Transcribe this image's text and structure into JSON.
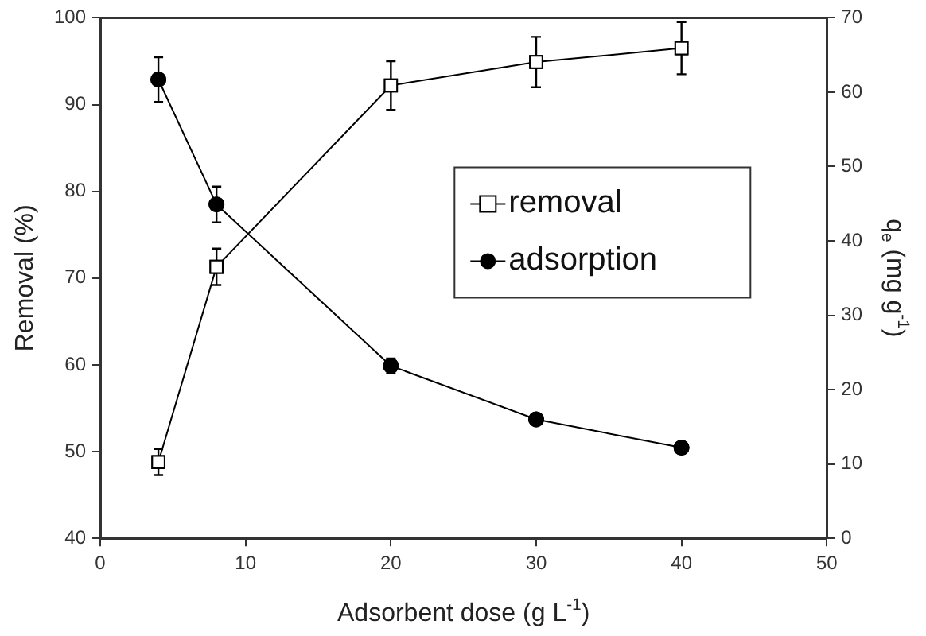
{
  "chart_data": {
    "type": "line",
    "xlabel": "Adsorbent dose (g L$^{-1}$)",
    "ylabel": "Removal (%)",
    "y2label": "q$_{e}$ (mg g$^{-1}$)",
    "x": [
      4,
      8,
      20,
      30,
      40
    ],
    "series": [
      {
        "name": "removal",
        "color": "#000000",
        "marker": "square",
        "values": [
          48.8,
          71.3,
          92.2,
          94.9,
          96.5
        ],
        "errors": [
          1.5,
          2.1,
          2.8,
          2.9,
          3.0
        ]
      },
      {
        "name": "adsorption",
        "color": "#000000",
        "marker": "circle",
        "axis": "y2",
        "values": [
          61.7,
          44.9,
          23.2,
          16.0,
          12.2
        ],
        "errors": [
          3.0,
          2.4,
          1.0,
          null,
          null
        ]
      }
    ],
    "xlim": [
      0,
      50
    ],
    "xticks": [
      0,
      10,
      20,
      30,
      40,
      50
    ],
    "ylim": [
      40,
      100
    ],
    "yticks": [
      40,
      50,
      60,
      70,
      80,
      90,
      100
    ],
    "y2lim": [
      0,
      70
    ],
    "y2ticks": [
      0,
      10,
      20,
      30,
      40,
      50,
      60,
      70
    ],
    "grid": false,
    "legend": "right",
    "line_style": "solid"
  }
}
